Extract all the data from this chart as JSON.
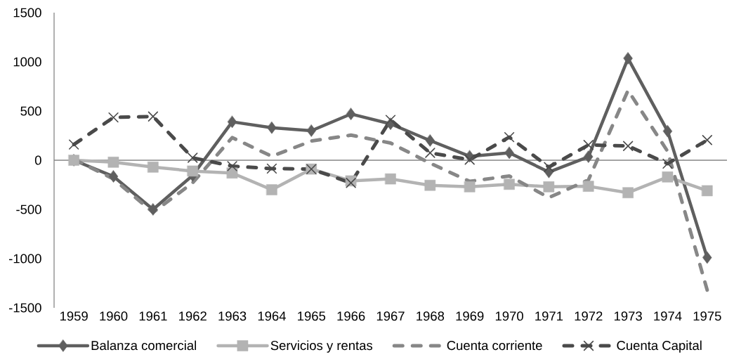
{
  "chart_data": {
    "type": "line",
    "categories": [
      "1959",
      "1960",
      "1961",
      "1962",
      "1963",
      "1964",
      "1965",
      "1966",
      "1967",
      "1968",
      "1969",
      "1970",
      "1971",
      "1972",
      "1973",
      "1974",
      "1975"
    ],
    "ylim": [
      -1500,
      1500
    ],
    "yticks": [
      -1500,
      -1000,
      -500,
      0,
      500,
      1000,
      1500
    ],
    "grid": false,
    "legend": "bottom",
    "ref_lines": [
      {
        "axis": "y",
        "value": 0,
        "color": "#868686"
      }
    ],
    "series": [
      {
        "name": "Balanza comercial",
        "color": "#5f5f5f",
        "marker": "diamond",
        "line_style": "solid",
        "values": [
          0,
          -165,
          -500,
          -155,
          390,
          330,
          300,
          470,
          370,
          200,
          40,
          75,
          -120,
          35,
          1035,
          295,
          -990
        ]
      },
      {
        "name": "Servicios y rentas",
        "color": "#b3b3b3",
        "marker": "square",
        "line_style": "solid",
        "values": [
          0,
          -20,
          -70,
          -110,
          -130,
          -300,
          -90,
          -210,
          -190,
          -255,
          -270,
          -245,
          -270,
          -265,
          -330,
          -170,
          -310
        ]
      },
      {
        "name": "Cuenta corriente",
        "color": "#878787",
        "marker": "none",
        "line_style": "dashed",
        "values": [
          10,
          -190,
          -530,
          -230,
          230,
          40,
          195,
          255,
          175,
          -30,
          -215,
          -160,
          -380,
          -200,
          710,
          90,
          -1320
        ]
      },
      {
        "name": "Cuenta Capital",
        "color": "#4a4a4a",
        "marker": "cross",
        "line_style": "dashed",
        "values": [
          160,
          435,
          445,
          25,
          -60,
          -85,
          -90,
          -230,
          410,
          75,
          5,
          235,
          -70,
          155,
          145,
          -35,
          205
        ]
      }
    ]
  }
}
